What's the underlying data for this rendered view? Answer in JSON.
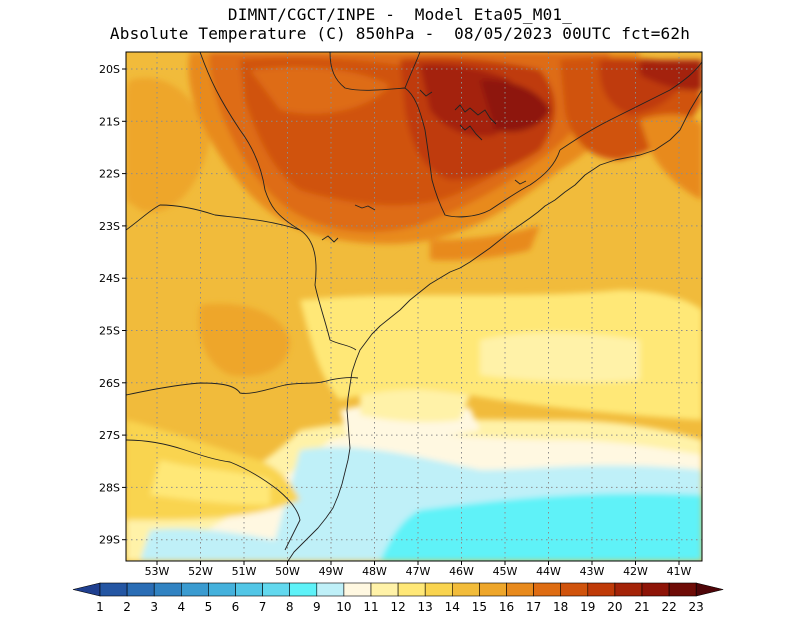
{
  "header": {
    "line1": "DIMNT/CGCT/INPE -  Model Eta05_M01_",
    "line2": "Absolute Temperature (C) 850hPa -  08/05/2023 00UTC fct=62h"
  },
  "map": {
    "lat_labels": [
      "20S",
      "21S",
      "22S",
      "23S",
      "24S",
      "25S",
      "26S",
      "27S",
      "28S",
      "29S"
    ],
    "lon_labels": [
      "53W",
      "52W",
      "51W",
      "50W",
      "49W",
      "48W",
      "47W",
      "46W",
      "45W",
      "44W",
      "43W",
      "42W",
      "41W"
    ]
  },
  "colorbar": {
    "labels": [
      "1",
      "2",
      "3",
      "4",
      "5",
      "6",
      "7",
      "8",
      "9",
      "10",
      "11",
      "12",
      "13",
      "14",
      "15",
      "16",
      "17",
      "18",
      "19",
      "20",
      "21",
      "22",
      "23"
    ],
    "colors": [
      "#1f3f8f",
      "#2456a3",
      "#2a6db5",
      "#3183c2",
      "#3a9bd0",
      "#44b1dc",
      "#52c6e6",
      "#62d8ee",
      "#5ef2f8",
      "#bff0f8",
      "#fff8e1",
      "#fff2a8",
      "#ffe877",
      "#f9d44f",
      "#f2bc3a",
      "#eea62a",
      "#e88a1d",
      "#de6c12",
      "#d0530c",
      "#bf3a08",
      "#a42308",
      "#8e1407",
      "#6e0b06",
      "#4e0508"
    ]
  }
}
